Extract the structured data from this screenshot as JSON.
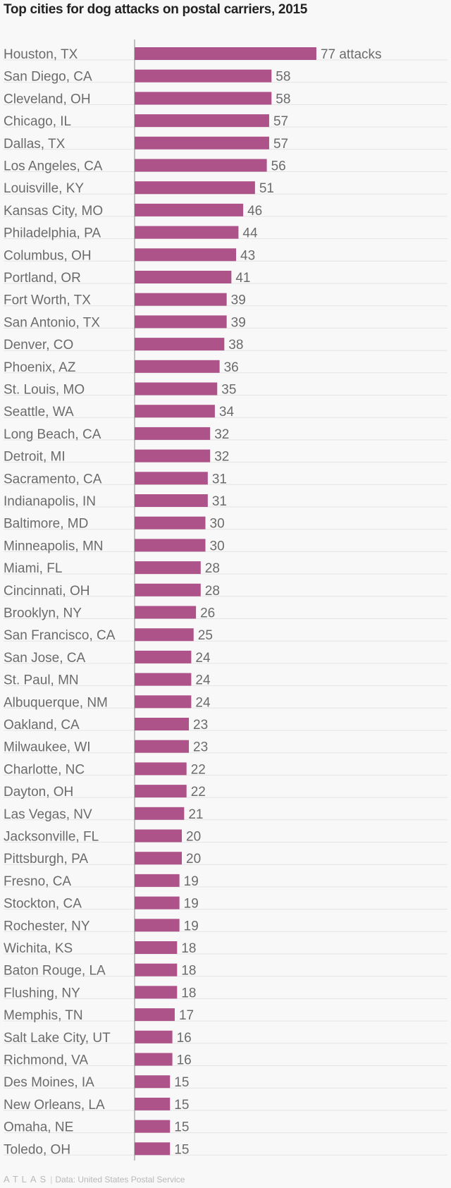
{
  "title": "Top cities for dog attacks on postal carriers, 2015",
  "footer": {
    "logo": "ATLAS",
    "source": "Data: United States Postal Service"
  },
  "colors": {
    "bar": "#ad5389",
    "label": "#6b6b6b",
    "axis": "#888888",
    "grid": "#e4e4e4",
    "background": "#f8f8f8"
  },
  "chart_data": {
    "type": "bar",
    "orientation": "horizontal",
    "first_label_suffix": " attacks",
    "xlim": [
      0,
      100
    ],
    "grid": true,
    "categories": [
      "Houston, TX",
      "San Diego, CA",
      "Cleveland, OH",
      "Chicago, IL",
      "Dallas, TX",
      "Los Angeles, CA",
      "Louisville, KY",
      "Kansas City, MO",
      "Philadelphia, PA",
      "Columbus, OH",
      "Portland, OR",
      "Fort Worth, TX",
      "San Antonio, TX",
      "Denver, CO",
      "Phoenix, AZ",
      "St. Louis, MO",
      "Seattle, WA",
      "Long Beach, CA",
      "Detroit, MI",
      "Sacramento, CA",
      "Indianapolis, IN",
      "Baltimore, MD",
      "Minneapolis, MN",
      "Miami, FL",
      "Cincinnati, OH",
      "Brooklyn, NY",
      "San Francisco, CA",
      "San Jose, CA",
      "St. Paul, MN",
      "Albuquerque, NM",
      "Oakland, CA",
      "Milwaukee, WI",
      "Charlotte, NC",
      "Dayton, OH",
      "Las Vegas, NV",
      "Jacksonville, FL",
      "Pittsburgh, PA",
      "Fresno, CA",
      "Stockton, CA",
      "Rochester, NY",
      "Wichita, KS",
      "Baton Rouge, LA",
      "Flushing, NY",
      "Memphis, TN",
      "Salt Lake City, UT",
      "Richmond, VA",
      "Des Moines, IA",
      "New Orleans, LA",
      "Omaha, NE",
      "Toledo, OH"
    ],
    "values": [
      77,
      58,
      58,
      57,
      57,
      56,
      51,
      46,
      44,
      43,
      41,
      39,
      39,
      38,
      36,
      35,
      34,
      32,
      32,
      31,
      31,
      30,
      30,
      28,
      28,
      26,
      25,
      24,
      24,
      24,
      23,
      23,
      22,
      22,
      21,
      20,
      20,
      19,
      19,
      19,
      18,
      18,
      18,
      17,
      16,
      16,
      15,
      15,
      15,
      15
    ]
  }
}
